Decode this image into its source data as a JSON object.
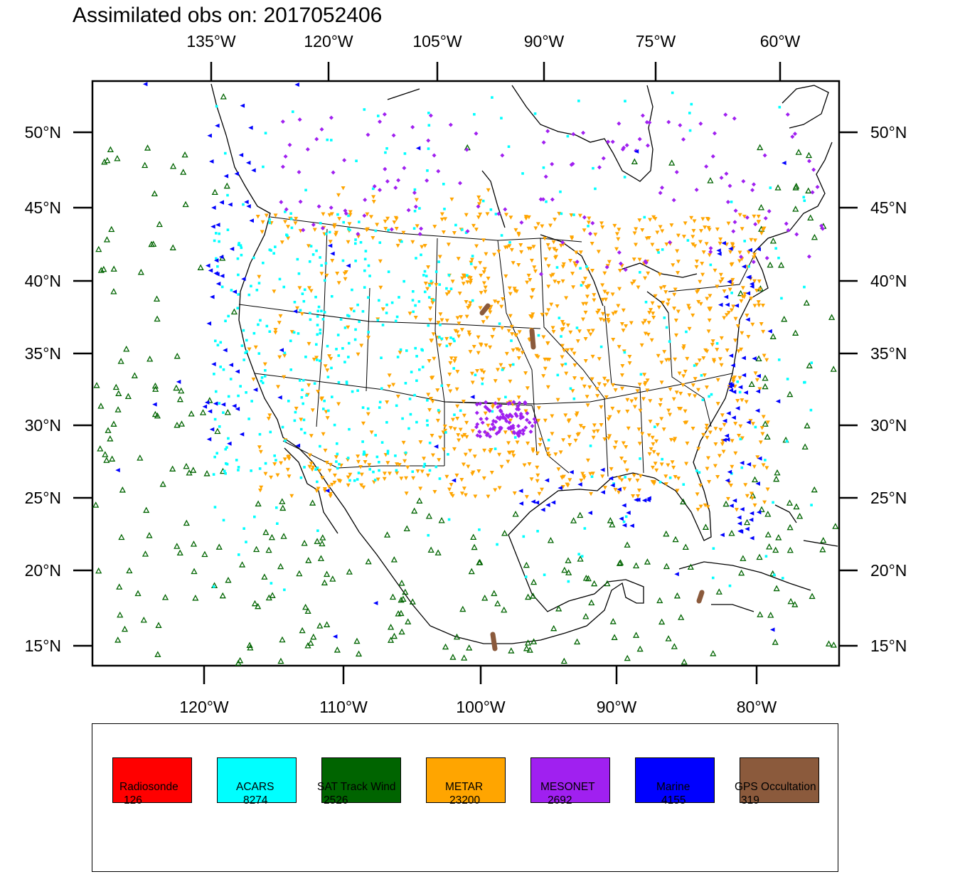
{
  "title": "Assimilated obs on: 2017052406",
  "axes": {
    "top_lon_labels": [
      "135°W",
      "120°W",
      "105°W",
      "90°W",
      "75°W",
      "60°W"
    ],
    "bottom_lon_labels": [
      "120°W",
      "110°W",
      "100°W",
      "90°W",
      "80°W"
    ],
    "lat_labels": [
      "50°N",
      "45°N",
      "40°N",
      "35°N",
      "30°N",
      "25°N",
      "20°N",
      "15°N"
    ]
  },
  "colors": {
    "radiosonde": "#ff0000",
    "acars": "#00ffff",
    "sat_track_wind": "#006400",
    "metar": "#ffa500",
    "mesonet": "#a020f0",
    "marine": "#0000ff",
    "gps_occultation": "#8b5a3c"
  },
  "legend": [
    {
      "label": "Radiosonde",
      "count": "126",
      "color": "#ff0000",
      "symbol": "none"
    },
    {
      "label": "ACARS",
      "count": "8274",
      "color": "#00ffff",
      "symbol": "square"
    },
    {
      "label": "SAT Track Wind",
      "count": "2526",
      "color": "#006400",
      "symbol": "triangle-up"
    },
    {
      "label": "METAR",
      "count": "23200",
      "color": "#ffa500",
      "symbol": "triangle-down"
    },
    {
      "label": "MESONET",
      "count": "2692",
      "color": "#a020f0",
      "symbol": "diamond"
    },
    {
      "label": "Marine",
      "count": "4155",
      "color": "#0000ff",
      "symbol": "triangle-left"
    },
    {
      "label": "GPS Occultation",
      "count": "319",
      "color": "#8b5a3c",
      "symbol": "segment"
    }
  ]
}
